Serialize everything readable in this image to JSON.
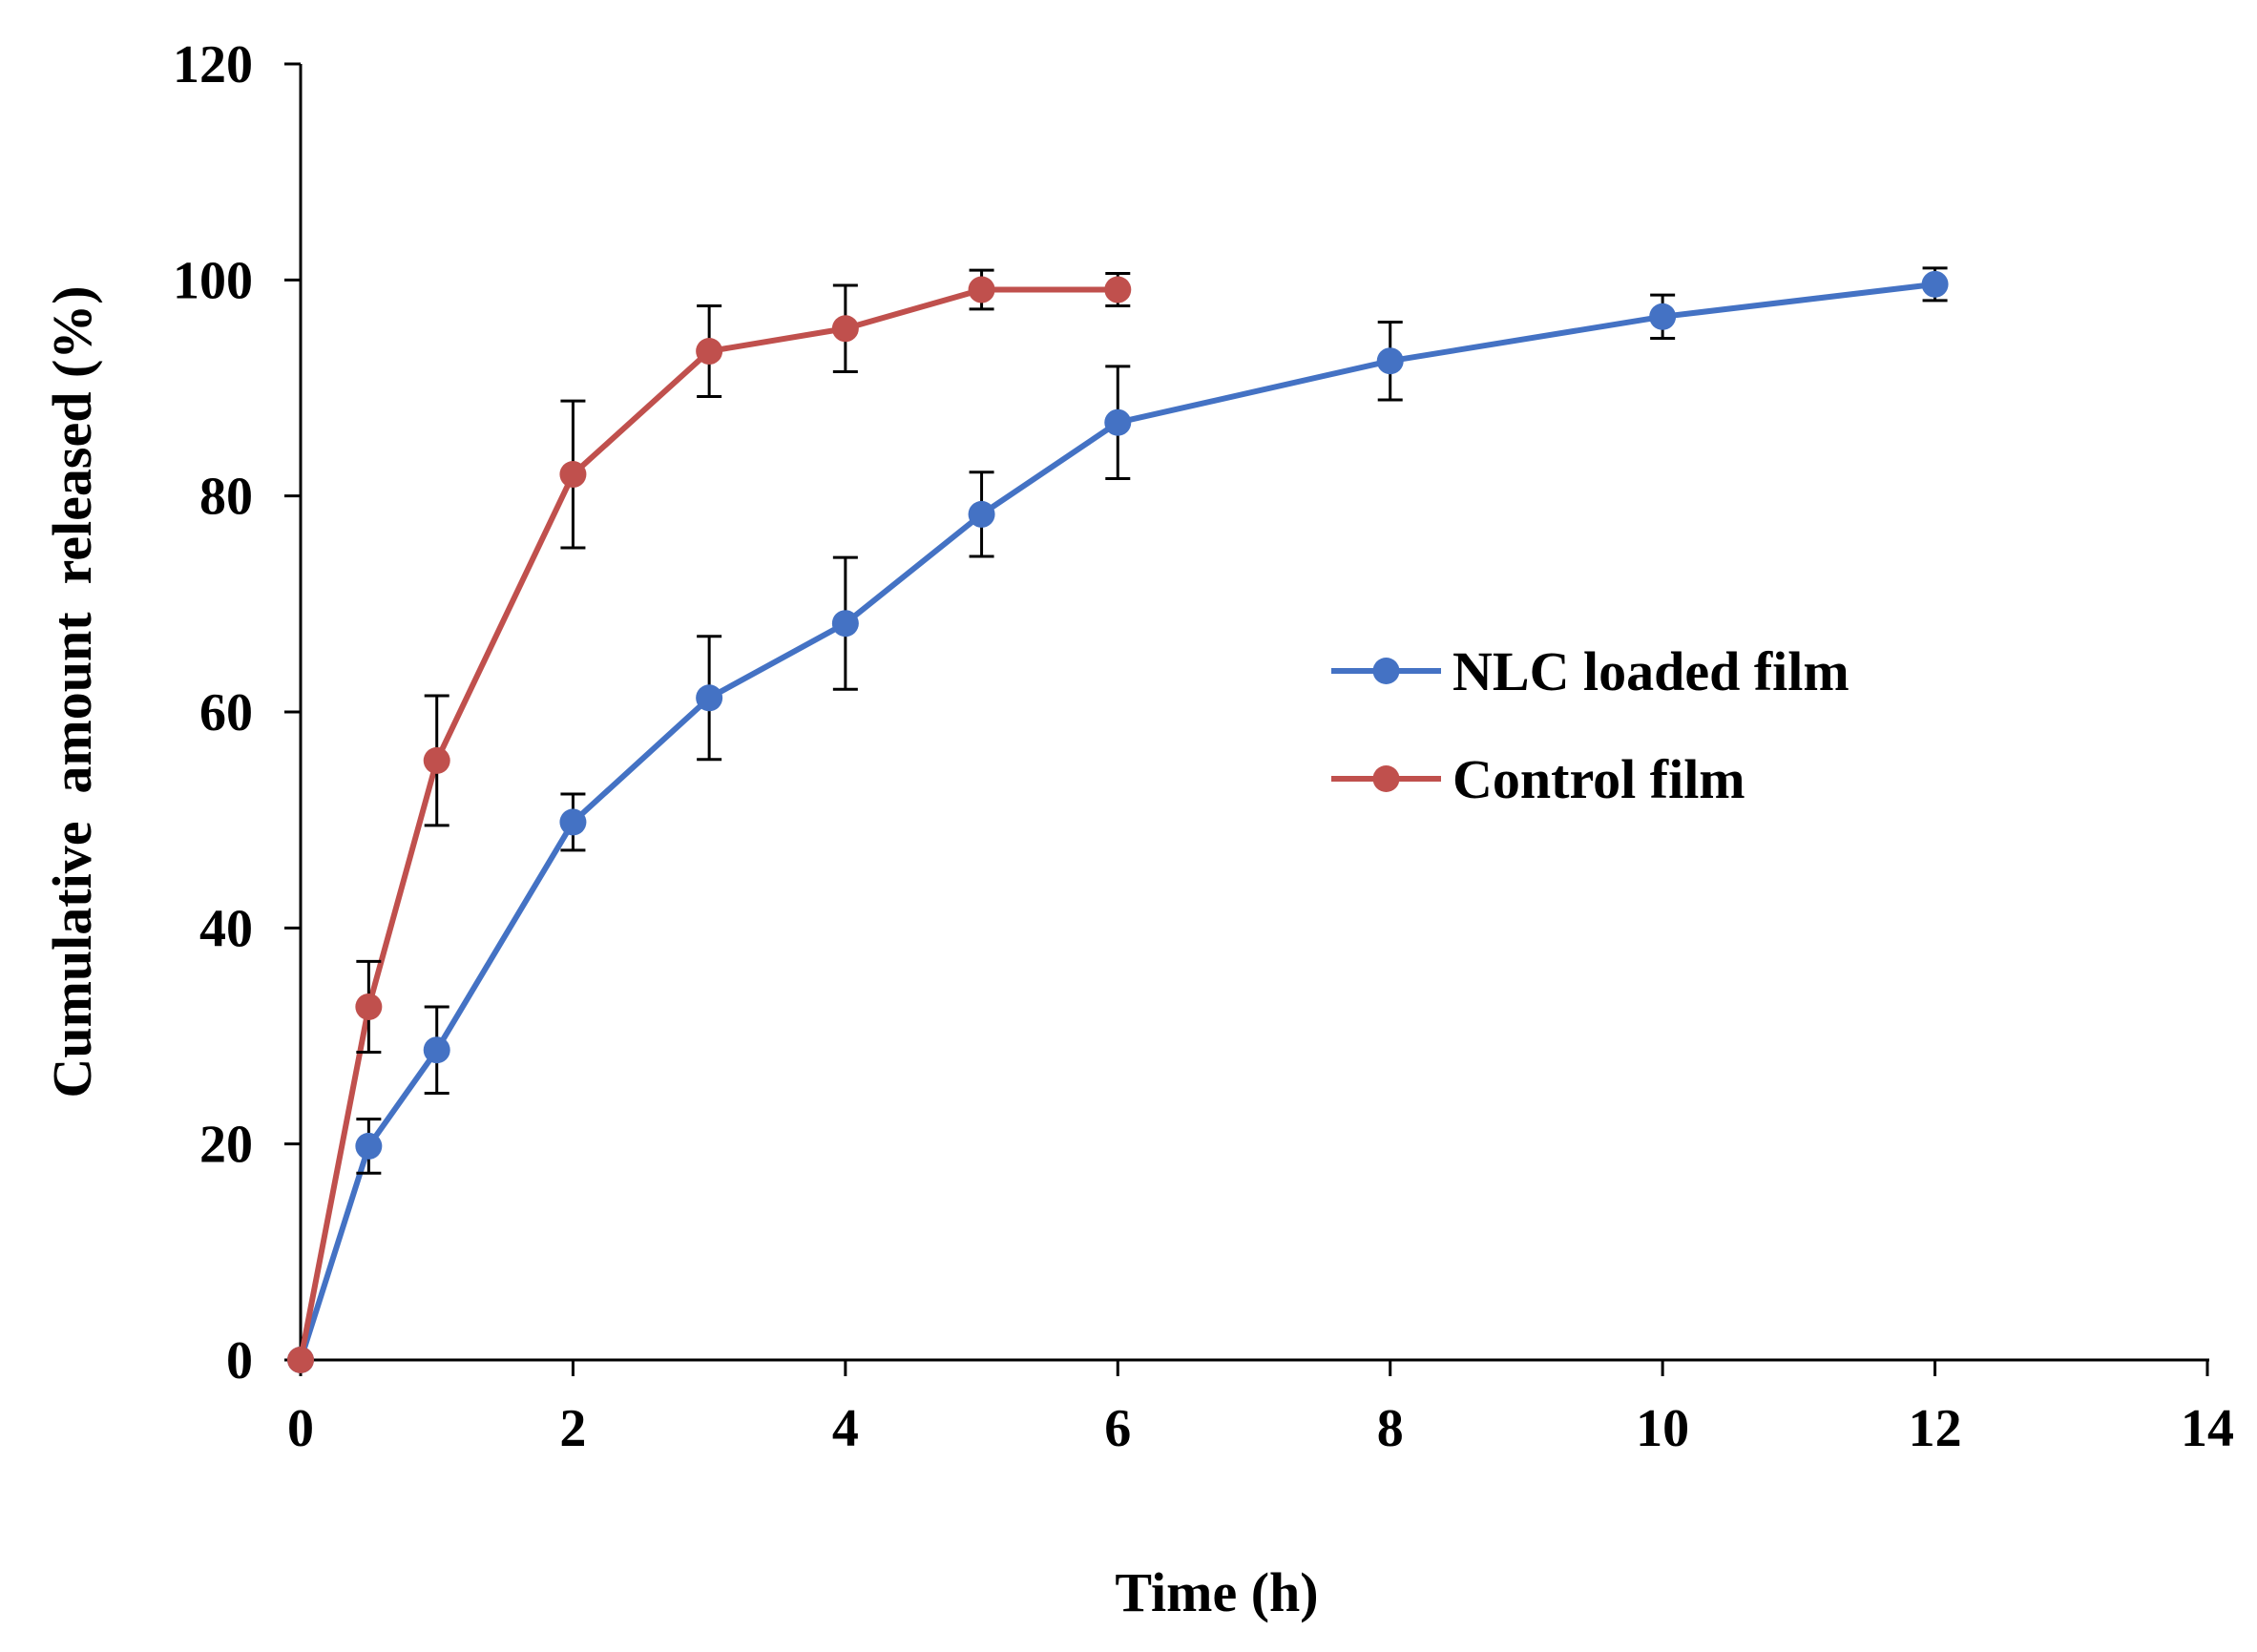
{
  "chart_data": {
    "type": "line",
    "title": "",
    "xlabel": "Time (h)",
    "ylabel": "Cumulative  amount  released (%)",
    "xlim": [
      0,
      14
    ],
    "ylim": [
      0,
      120
    ],
    "xticks": [
      0,
      2,
      4,
      6,
      8,
      10,
      12,
      14
    ],
    "yticks": [
      0,
      20,
      40,
      60,
      80,
      100,
      120
    ],
    "grid": false,
    "legend_position": "right-center",
    "series": [
      {
        "name": "NLC loaded film",
        "color": "#4472C4",
        "x": [
          0,
          0.5,
          1,
          2,
          3,
          4,
          5,
          6,
          8,
          10,
          12
        ],
        "y": [
          0,
          19.8,
          28.7,
          49.8,
          61.3,
          68.2,
          78.3,
          86.8,
          92.5,
          96.6,
          99.6
        ],
        "error": [
          0,
          2.5,
          4.0,
          2.6,
          5.7,
          6.1,
          3.9,
          5.2,
          3.6,
          2.0,
          1.5
        ]
      },
      {
        "name": "Control film",
        "color": "#C0504D",
        "x": [
          0,
          0.5,
          1,
          2,
          3,
          4,
          5,
          6
        ],
        "y": [
          0,
          32.7,
          55.5,
          82.0,
          93.4,
          95.5,
          99.1,
          99.1
        ],
        "error": [
          0,
          4.2,
          6.0,
          6.8,
          4.2,
          4.0,
          1.8,
          1.5
        ]
      }
    ]
  }
}
